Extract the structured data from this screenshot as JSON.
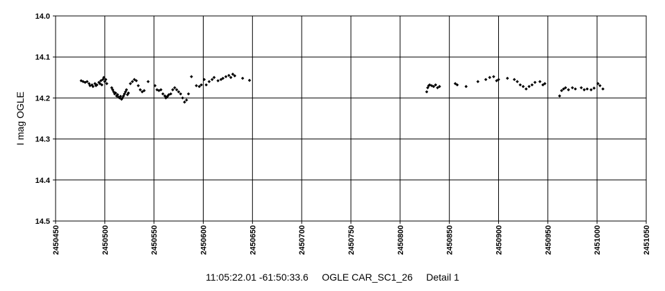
{
  "caption": "11:05:22.01 -61:50:33.6     OGLE CAR_SC1_26     Detail 1",
  "chart_data": {
    "type": "scatter",
    "title": "",
    "xlabel": "",
    "ylabel": "I mag OGLE",
    "xlim": [
      2450450,
      2451050
    ],
    "ylim": [
      14.5,
      14.0
    ],
    "y_inverted": true,
    "grid": true,
    "x_ticks": [
      "2450450",
      "2450500",
      "2450550",
      "2450600",
      "2450650",
      "2450700",
      "2450750",
      "2450800",
      "2450850",
      "2450900",
      "2450950",
      "2451000",
      "2451050"
    ],
    "y_ticks": [
      "14.0",
      "14.1",
      "14.2",
      "14.3",
      "14.4",
      "14.5"
    ],
    "marker_color": "#000000",
    "series": [
      {
        "points": [
          [
            2450476,
            14.158
          ],
          [
            2450478,
            14.16
          ],
          [
            2450480,
            14.162
          ],
          [
            2450482,
            14.16
          ],
          [
            2450484,
            14.165
          ],
          [
            2450485,
            14.17
          ],
          [
            2450487,
            14.168
          ],
          [
            2450488,
            14.172
          ],
          [
            2450490,
            14.165
          ],
          [
            2450491,
            14.17
          ],
          [
            2450492,
            14.168
          ],
          [
            2450494,
            14.162
          ],
          [
            2450495,
            14.165
          ],
          [
            2450496,
            14.158
          ],
          [
            2450497,
            14.168
          ],
          [
            2450498,
            14.155
          ],
          [
            2450499,
            14.15
          ],
          [
            2450500,
            14.16
          ],
          [
            2450501,
            14.155
          ],
          [
            2450502,
            14.165
          ],
          [
            2450507,
            14.175
          ],
          [
            2450508,
            14.18
          ],
          [
            2450509,
            14.185
          ],
          [
            2450510,
            14.19
          ],
          [
            2450511,
            14.188
          ],
          [
            2450512,
            14.195
          ],
          [
            2450513,
            14.192
          ],
          [
            2450514,
            14.198
          ],
          [
            2450515,
            14.2
          ],
          [
            2450516,
            14.196
          ],
          [
            2450517,
            14.203
          ],
          [
            2450518,
            14.2
          ],
          [
            2450519,
            14.195
          ],
          [
            2450520,
            14.19
          ],
          [
            2450521,
            14.185
          ],
          [
            2450522,
            14.18
          ],
          [
            2450523,
            14.192
          ],
          [
            2450524,
            14.188
          ],
          [
            2450526,
            14.165
          ],
          [
            2450528,
            14.16
          ],
          [
            2450530,
            14.155
          ],
          [
            2450532,
            14.158
          ],
          [
            2450534,
            14.17
          ],
          [
            2450536,
            14.18
          ],
          [
            2450538,
            14.185
          ],
          [
            2450540,
            14.182
          ],
          [
            2450544,
            14.16
          ],
          [
            2450551,
            14.17
          ],
          [
            2450553,
            14.18
          ],
          [
            2450555,
            14.182
          ],
          [
            2450557,
            14.18
          ],
          [
            2450559,
            14.19
          ],
          [
            2450561,
            14.195
          ],
          [
            2450562,
            14.2
          ],
          [
            2450563,
            14.198
          ],
          [
            2450564,
            14.195
          ],
          [
            2450565,
            14.192
          ],
          [
            2450567,
            14.19
          ],
          [
            2450569,
            14.18
          ],
          [
            2450571,
            14.175
          ],
          [
            2450573,
            14.18
          ],
          [
            2450575,
            14.185
          ],
          [
            2450577,
            14.19
          ],
          [
            2450579,
            14.2
          ],
          [
            2450581,
            14.21
          ],
          [
            2450583,
            14.205
          ],
          [
            2450585,
            14.19
          ],
          [
            2450588,
            14.148
          ],
          [
            2450593,
            14.17
          ],
          [
            2450596,
            14.172
          ],
          [
            2450598,
            14.168
          ],
          [
            2450601,
            14.155
          ],
          [
            2450603,
            14.168
          ],
          [
            2450606,
            14.16
          ],
          [
            2450609,
            14.155
          ],
          [
            2450611,
            14.15
          ],
          [
            2450615,
            14.158
          ],
          [
            2450618,
            14.155
          ],
          [
            2450620,
            14.152
          ],
          [
            2450623,
            14.148
          ],
          [
            2450626,
            14.145
          ],
          [
            2450628,
            14.15
          ],
          [
            2450630,
            14.142
          ],
          [
            2450632,
            14.146
          ],
          [
            2450640,
            14.152
          ],
          [
            2450647,
            14.157
          ],
          [
            2450827,
            14.185
          ],
          [
            2450828,
            14.175
          ],
          [
            2450829,
            14.17
          ],
          [
            2450830,
            14.168
          ],
          [
            2450832,
            14.17
          ],
          [
            2450834,
            14.172
          ],
          [
            2450836,
            14.168
          ],
          [
            2450838,
            14.175
          ],
          [
            2450840,
            14.172
          ],
          [
            2450856,
            14.165
          ],
          [
            2450858,
            14.168
          ],
          [
            2450867,
            14.172
          ],
          [
            2450879,
            14.16
          ],
          [
            2450887,
            14.155
          ],
          [
            2450891,
            14.15
          ],
          [
            2450895,
            14.148
          ],
          [
            2450898,
            14.158
          ],
          [
            2450900,
            14.155
          ],
          [
            2450909,
            14.152
          ],
          [
            2450916,
            14.155
          ],
          [
            2450919,
            14.16
          ],
          [
            2450922,
            14.168
          ],
          [
            2450925,
            14.172
          ],
          [
            2450928,
            14.178
          ],
          [
            2450931,
            14.172
          ],
          [
            2450934,
            14.168
          ],
          [
            2450937,
            14.162
          ],
          [
            2450942,
            14.16
          ],
          [
            2450945,
            14.168
          ],
          [
            2450947,
            14.165
          ],
          [
            2450962,
            14.195
          ],
          [
            2450964,
            14.182
          ],
          [
            2450966,
            14.178
          ],
          [
            2450968,
            14.175
          ],
          [
            2450971,
            14.18
          ],
          [
            2450975,
            14.175
          ],
          [
            2450978,
            14.178
          ],
          [
            2450984,
            14.175
          ],
          [
            2450987,
            14.18
          ],
          [
            2450990,
            14.178
          ],
          [
            2450994,
            14.18
          ],
          [
            2450997,
            14.176
          ],
          [
            2451001,
            14.165
          ],
          [
            2451003,
            14.17
          ],
          [
            2451006,
            14.178
          ]
        ]
      }
    ]
  }
}
